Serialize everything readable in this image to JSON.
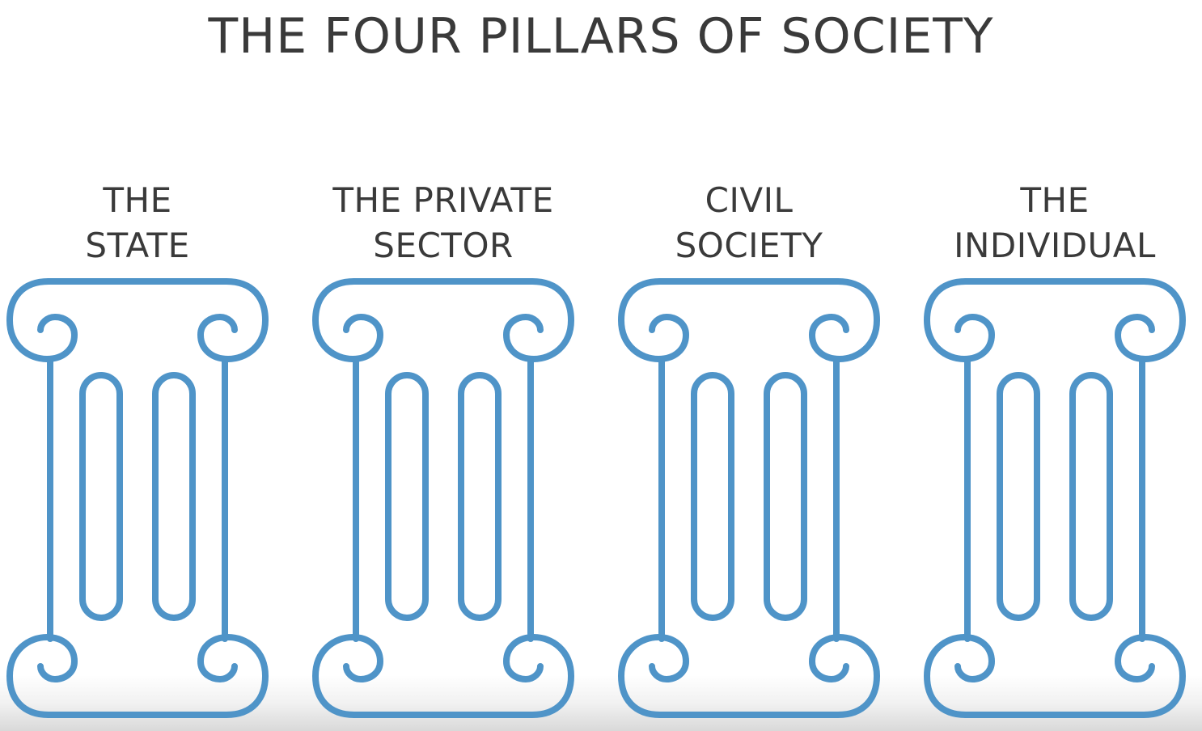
{
  "title": "THE FOUR PILLARS OF SOCIETY",
  "pillars": [
    {
      "line1": "THE",
      "line2": "STATE"
    },
    {
      "line1": "THE PRIVATE",
      "line2": "SECTOR"
    },
    {
      "line1": "CIVIL",
      "line2": "SOCIETY"
    },
    {
      "line1": "THE",
      "line2": "INDIVIDUAL"
    }
  ],
  "colors": {
    "pillar_stroke": "#4f94c8",
    "text": "#3a3a3a"
  },
  "icons": {
    "pillar": "ionic-column-icon"
  }
}
